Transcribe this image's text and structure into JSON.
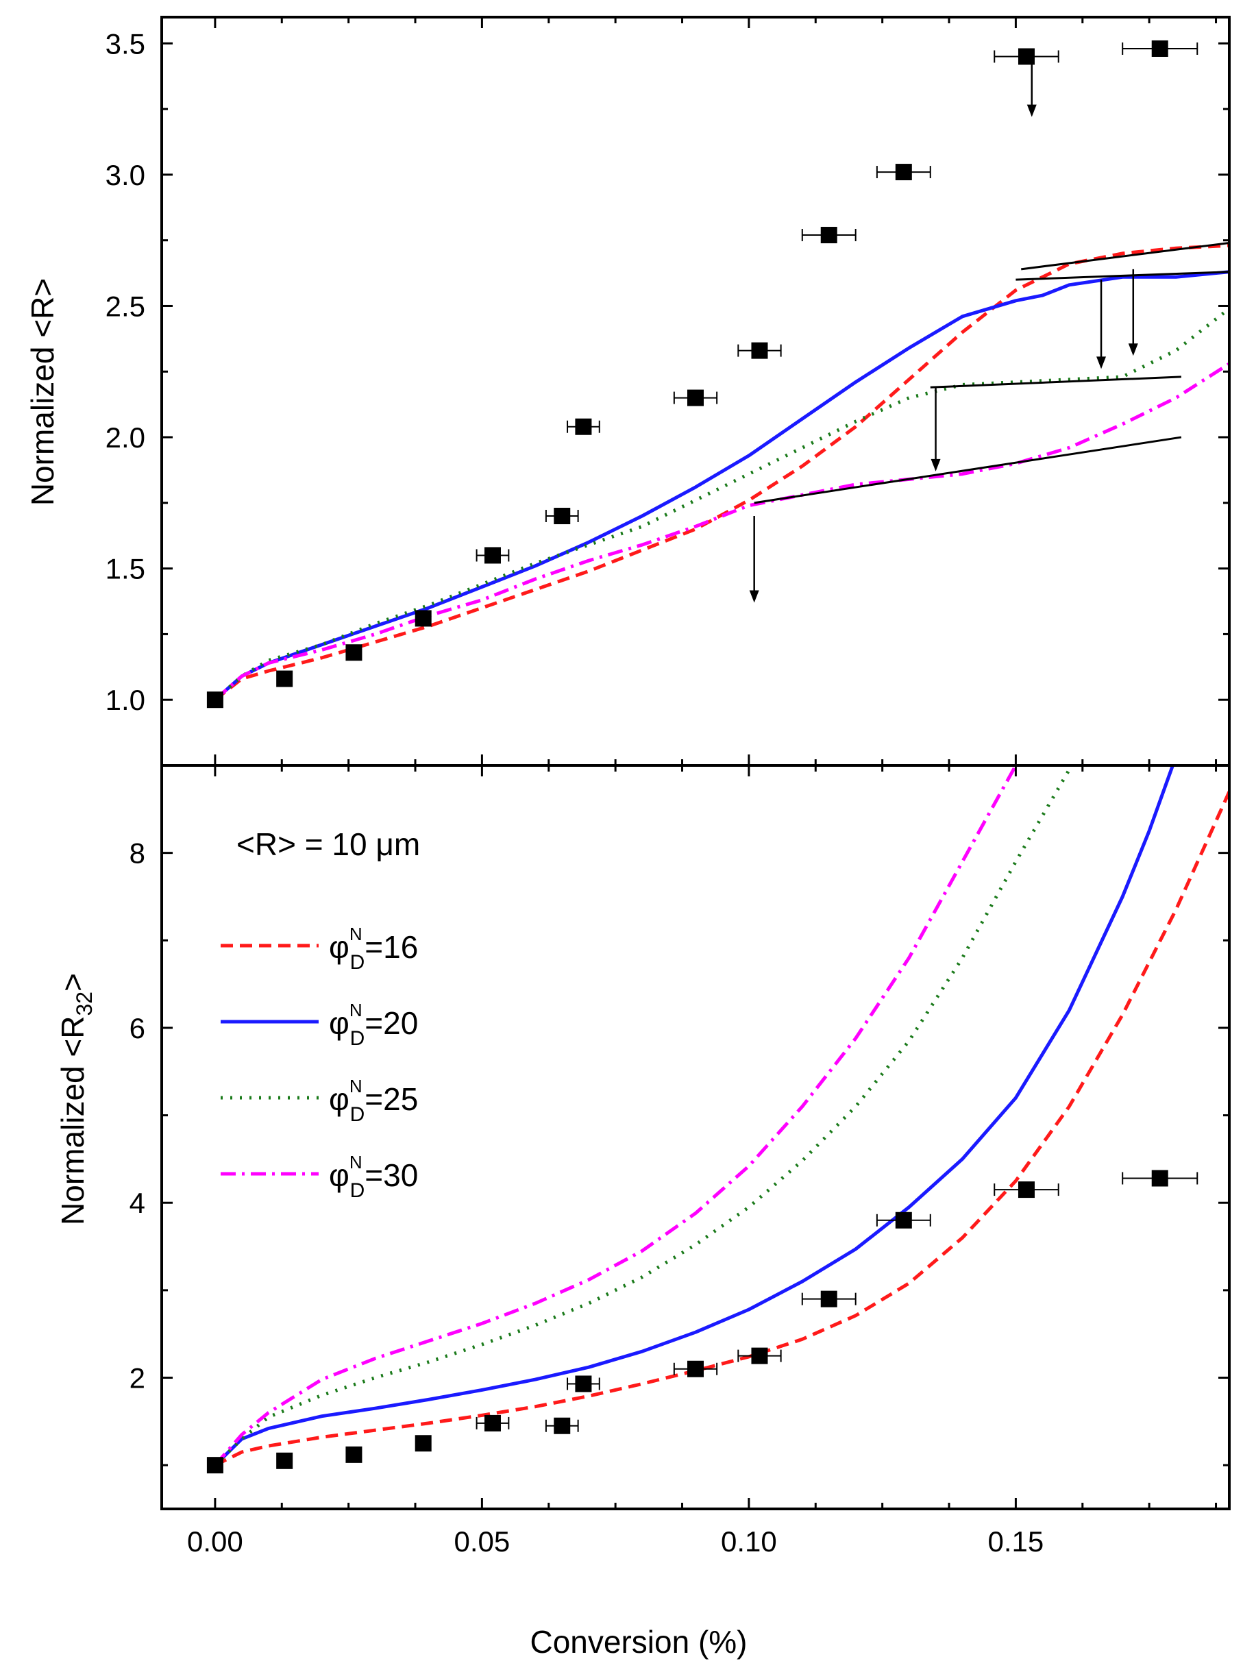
{
  "chart_data": [
    {
      "type": "line",
      "panel": "top",
      "ylabel": "Normalized <R>",
      "xlim": [
        -0.01,
        0.19
      ],
      "ylim": [
        0.75,
        3.6
      ],
      "yticks": [
        1.0,
        1.5,
        2.0,
        2.5,
        3.0,
        3.5
      ],
      "ytick_labels": [
        "1.0",
        "1.5",
        "2.0",
        "2.5",
        "3.0",
        "3.5"
      ],
      "grid": false,
      "series": [
        {
          "name": "φND=16",
          "color": "#ff1a1a",
          "style": "dashed",
          "x": [
            0,
            0.005,
            0.01,
            0.02,
            0.03,
            0.04,
            0.05,
            0.06,
            0.07,
            0.08,
            0.09,
            0.1,
            0.11,
            0.12,
            0.13,
            0.14,
            0.15,
            0.16,
            0.17,
            0.18,
            0.19
          ],
          "y": [
            1.0,
            1.08,
            1.11,
            1.16,
            1.22,
            1.28,
            1.35,
            1.42,
            1.49,
            1.57,
            1.65,
            1.76,
            1.89,
            2.04,
            2.22,
            2.4,
            2.56,
            2.66,
            2.7,
            2.72,
            2.73
          ]
        },
        {
          "name": "φND=20",
          "color": "#1a1aff",
          "style": "solid",
          "x": [
            0,
            0.005,
            0.01,
            0.02,
            0.03,
            0.04,
            0.05,
            0.06,
            0.07,
            0.08,
            0.09,
            0.1,
            0.11,
            0.12,
            0.13,
            0.14,
            0.15,
            0.155,
            0.16,
            0.17,
            0.18,
            0.19
          ],
          "y": [
            1.0,
            1.09,
            1.14,
            1.21,
            1.28,
            1.35,
            1.43,
            1.51,
            1.6,
            1.7,
            1.81,
            1.93,
            2.07,
            2.21,
            2.34,
            2.46,
            2.52,
            2.54,
            2.58,
            2.61,
            2.61,
            2.63
          ]
        },
        {
          "name": "φND=25",
          "color": "#1a7a1a",
          "style": "dotted",
          "x": [
            0,
            0.005,
            0.01,
            0.02,
            0.03,
            0.04,
            0.05,
            0.06,
            0.07,
            0.08,
            0.09,
            0.1,
            0.11,
            0.12,
            0.13,
            0.14,
            0.15,
            0.16,
            0.17,
            0.18,
            0.19
          ],
          "y": [
            1.0,
            1.09,
            1.15,
            1.21,
            1.29,
            1.36,
            1.44,
            1.52,
            1.59,
            1.66,
            1.76,
            1.86,
            1.96,
            2.06,
            2.15,
            2.2,
            2.21,
            2.22,
            2.23,
            2.33,
            2.49
          ]
        },
        {
          "name": "φND=30",
          "color": "#ff00ff",
          "style": "dashdot",
          "x": [
            0,
            0.005,
            0.01,
            0.02,
            0.03,
            0.04,
            0.05,
            0.06,
            0.07,
            0.08,
            0.09,
            0.1,
            0.11,
            0.12,
            0.13,
            0.14,
            0.15,
            0.16,
            0.17,
            0.18,
            0.19
          ],
          "y": [
            1.0,
            1.09,
            1.14,
            1.19,
            1.25,
            1.32,
            1.38,
            1.46,
            1.53,
            1.59,
            1.66,
            1.74,
            1.78,
            1.82,
            1.84,
            1.86,
            1.9,
            1.96,
            2.05,
            2.15,
            2.28
          ]
        }
      ],
      "points": {
        "x": [
          0,
          0.013,
          0.026,
          0.039,
          0.052,
          0.065,
          0.069,
          0.09,
          0.102,
          0.115,
          0.129,
          0.152,
          0.177
        ],
        "y": [
          1.0,
          1.08,
          1.18,
          1.31,
          1.55,
          1.7,
          2.04,
          2.15,
          2.33,
          2.77,
          3.01,
          3.45,
          3.48
        ],
        "xerr": [
          0,
          0,
          0,
          0,
          0.003,
          0.003,
          0.003,
          0.004,
          0.004,
          0.005,
          0.005,
          0.006,
          0.007
        ]
      },
      "annotation_lines": [
        {
          "x": [
            0.101,
            0.181
          ],
          "y": [
            1.75,
            2.0
          ]
        },
        {
          "x": [
            0.134,
            0.181
          ],
          "y": [
            2.19,
            2.23
          ]
        },
        {
          "x": [
            0.15,
            0.19
          ],
          "y": [
            2.6,
            2.63
          ]
        },
        {
          "x": [
            0.151,
            0.19
          ],
          "y": [
            2.64,
            2.74
          ]
        }
      ],
      "arrows": [
        {
          "x": 0.101,
          "y_from": 1.7,
          "y_to": 1.37
        },
        {
          "x": 0.135,
          "y_from": 2.19,
          "y_to": 1.87
        },
        {
          "x": 0.153,
          "y_from": 3.42,
          "y_to": 3.22
        },
        {
          "x": 0.166,
          "y_from": 2.6,
          "y_to": 2.26
        },
        {
          "x": 0.172,
          "y_from": 2.64,
          "y_to": 2.31
        }
      ]
    },
    {
      "type": "line",
      "panel": "bottom",
      "ylabel_main": "Normalized <R",
      "ylabel_sub": "32",
      "ylabel_end": ">",
      "xlabel": "Conversion (%)",
      "xlim": [
        -0.01,
        0.19
      ],
      "ylim": [
        0.5,
        9.0
      ],
      "yticks": [
        2,
        4,
        6,
        8
      ],
      "ytick_labels": [
        "2",
        "4",
        "6",
        "8"
      ],
      "xticks": [
        0.0,
        0.05,
        0.1,
        0.15
      ],
      "xtick_labels": [
        "0.00",
        "0.05",
        "0.10",
        "0.15"
      ],
      "grid": false,
      "annotation_text": "<R> = 10 μm",
      "legend": [
        {
          "symbol": "φ",
          "sup": "N",
          "sub": "D",
          "value": "=16",
          "color": "#ff1a1a",
          "style": "dashed"
        },
        {
          "symbol": "φ",
          "sup": "N",
          "sub": "D",
          "value": "=20",
          "color": "#1a1aff",
          "style": "solid"
        },
        {
          "symbol": "φ",
          "sup": "N",
          "sub": "D",
          "value": "=25",
          "color": "#1a7a1a",
          "style": "dotted"
        },
        {
          "symbol": "φ",
          "sup": "N",
          "sub": "D",
          "value": "=30",
          "color": "#ff00ff",
          "style": "dashdot"
        }
      ],
      "series": [
        {
          "name": "φND=16",
          "color": "#ff1a1a",
          "style": "dashed",
          "x": [
            0,
            0.005,
            0.01,
            0.02,
            0.03,
            0.04,
            0.05,
            0.06,
            0.07,
            0.08,
            0.09,
            0.1,
            0.11,
            0.12,
            0.13,
            0.14,
            0.15,
            0.16,
            0.17,
            0.18,
            0.19
          ],
          "y": [
            1.0,
            1.15,
            1.22,
            1.32,
            1.4,
            1.48,
            1.57,
            1.67,
            1.79,
            1.93,
            2.08,
            2.24,
            2.44,
            2.71,
            3.08,
            3.6,
            4.25,
            5.1,
            6.15,
            7.35,
            8.7
          ]
        },
        {
          "name": "φND=20",
          "color": "#1a1aff",
          "style": "solid",
          "x": [
            0,
            0.005,
            0.01,
            0.02,
            0.03,
            0.04,
            0.05,
            0.06,
            0.07,
            0.08,
            0.09,
            0.1,
            0.11,
            0.12,
            0.13,
            0.14,
            0.15,
            0.16,
            0.17,
            0.175,
            0.18
          ],
          "y": [
            1.0,
            1.3,
            1.42,
            1.56,
            1.65,
            1.75,
            1.86,
            1.98,
            2.12,
            2.3,
            2.52,
            2.78,
            3.1,
            3.47,
            3.95,
            4.5,
            5.2,
            6.2,
            7.5,
            8.25,
            9.1
          ]
        },
        {
          "name": "φND=25",
          "color": "#1a7a1a",
          "style": "dotted",
          "x": [
            0,
            0.005,
            0.01,
            0.02,
            0.03,
            0.04,
            0.05,
            0.06,
            0.07,
            0.08,
            0.09,
            0.1,
            0.11,
            0.12,
            0.13,
            0.14,
            0.15,
            0.16,
            0.162
          ],
          "y": [
            1.0,
            1.3,
            1.55,
            1.8,
            2.0,
            2.18,
            2.38,
            2.6,
            2.85,
            3.15,
            3.52,
            3.95,
            4.48,
            5.1,
            5.85,
            6.8,
            7.9,
            8.95,
            9.1
          ]
        },
        {
          "name": "φND=30",
          "color": "#ff00ff",
          "style": "dashdot",
          "x": [
            0,
            0.005,
            0.01,
            0.02,
            0.03,
            0.04,
            0.05,
            0.06,
            0.07,
            0.08,
            0.09,
            0.1,
            0.11,
            0.12,
            0.13,
            0.14,
            0.15,
            0.155
          ],
          "y": [
            1.0,
            1.35,
            1.6,
            1.98,
            2.22,
            2.42,
            2.62,
            2.85,
            3.12,
            3.45,
            3.88,
            4.42,
            5.1,
            5.88,
            6.8,
            7.9,
            9.0,
            9.1
          ]
        }
      ],
      "points": {
        "x": [
          0,
          0.013,
          0.026,
          0.039,
          0.052,
          0.065,
          0.069,
          0.09,
          0.102,
          0.115,
          0.129,
          0.152,
          0.177
        ],
        "y": [
          1.0,
          1.05,
          1.12,
          1.25,
          1.48,
          1.45,
          1.93,
          2.1,
          2.25,
          2.9,
          3.8,
          4.15,
          4.28
        ],
        "xerr": [
          0,
          0,
          0,
          0,
          0.003,
          0.003,
          0.003,
          0.004,
          0.004,
          0.005,
          0.005,
          0.006,
          0.007
        ]
      }
    }
  ]
}
